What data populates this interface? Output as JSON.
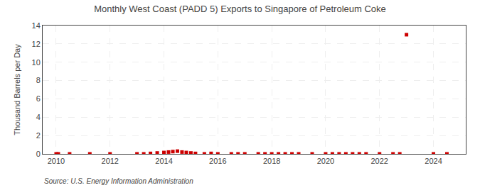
{
  "chart_data": {
    "type": "scatter",
    "title": "Monthly West Coast (PADD 5) Exports to Singapore of Petroleum Coke",
    "ylabel": "Thousand Barrels per Day",
    "source": "Source: U.S. Energy Information Administration",
    "x": [
      2010.0,
      2010.08,
      2010.5,
      2011.25,
      2012.0,
      2013.0,
      2013.25,
      2013.5,
      2013.75,
      2014.0,
      2014.17,
      2014.33,
      2014.5,
      2014.67,
      2014.83,
      2015.0,
      2015.17,
      2015.5,
      2015.75,
      2016.0,
      2016.5,
      2016.75,
      2017.0,
      2017.5,
      2017.75,
      2018.0,
      2018.25,
      2018.5,
      2018.75,
      2019.0,
      2019.5,
      2020.0,
      2020.25,
      2020.5,
      2020.75,
      2021.0,
      2021.25,
      2021.5,
      2022.0,
      2022.5,
      2022.75,
      2023.0,
      2024.0,
      2024.5
    ],
    "values": [
      0.0,
      0.0,
      0.0,
      0.0,
      0.0,
      0.0,
      0.0,
      0.05,
      0.1,
      0.15,
      0.2,
      0.25,
      0.3,
      0.2,
      0.15,
      0.1,
      0.05,
      0.0,
      0.05,
      0.0,
      0.0,
      0.0,
      0.0,
      0.0,
      0.0,
      0.0,
      0.0,
      0.0,
      0.0,
      0.0,
      0.0,
      0.0,
      0.0,
      0.0,
      0.0,
      0.0,
      0.0,
      0.0,
      0.0,
      0.0,
      0.0,
      13.0,
      0.0,
      0.0
    ],
    "color": "#cc0000",
    "marker": "square",
    "xlim": [
      2009.5,
      2025.2
    ],
    "ylim": [
      0,
      14
    ],
    "xticks": [
      2010,
      2012,
      2014,
      2016,
      2018,
      2020,
      2022,
      2024
    ],
    "yticks": [
      0,
      2,
      4,
      6,
      8,
      10,
      12,
      14
    ],
    "grid": true
  }
}
